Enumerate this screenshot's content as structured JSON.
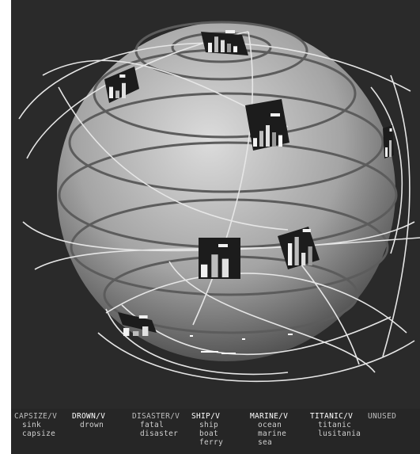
{
  "legend": {
    "columns": [
      {
        "head": "CAPSIZE/V",
        "words": [
          "sink",
          "capsize"
        ],
        "highlight": false
      },
      {
        "head": "DROWN/V",
        "words": [
          "drown"
        ],
        "highlight": true
      },
      {
        "head": "DISASTER/V",
        "words": [
          "fatal",
          "disaster"
        ],
        "highlight": false
      },
      {
        "head": "SHIP/V",
        "words": [
          "ship",
          "boat",
          "ferry"
        ],
        "highlight": true
      },
      {
        "head": "MARINE/V",
        "words": [
          "ocean",
          "marine",
          "sea"
        ],
        "highlight": true
      },
      {
        "head": "TITANIC/V",
        "words": [
          "titanic",
          "lusitania"
        ],
        "highlight": true
      },
      {
        "head": "UNUSED",
        "words": [],
        "highlight": false
      }
    ]
  },
  "colors": {
    "background": "#2a2a2a",
    "globe_light": "#d9d9d9",
    "globe_dark": "#3c3c3c",
    "orbit": "#e6e6e6",
    "bar": "#e8e8e8",
    "panel": "#1c1c1c"
  },
  "documents": [
    {
      "id": "doc-top",
      "bars": [
        0.55,
        0.9,
        0.7,
        0.5,
        0.35
      ]
    },
    {
      "id": "doc-upper-left",
      "bars": [
        0.6,
        0.4,
        0.8
      ]
    },
    {
      "id": "doc-center-right",
      "bars": [
        0.3,
        0.55,
        0.75,
        0.5,
        0.4
      ]
    },
    {
      "id": "doc-lower-center",
      "bars": [
        0.45,
        0.8,
        0.65
      ]
    },
    {
      "id": "doc-lower-right",
      "bars": [
        0.7,
        0.9,
        0.4,
        0.6
      ]
    },
    {
      "id": "doc-bottom-left",
      "bars": [
        0.5,
        0.3,
        0.6
      ]
    },
    {
      "id": "doc-right-edge",
      "bars": [
        0.4,
        0.7
      ]
    }
  ]
}
